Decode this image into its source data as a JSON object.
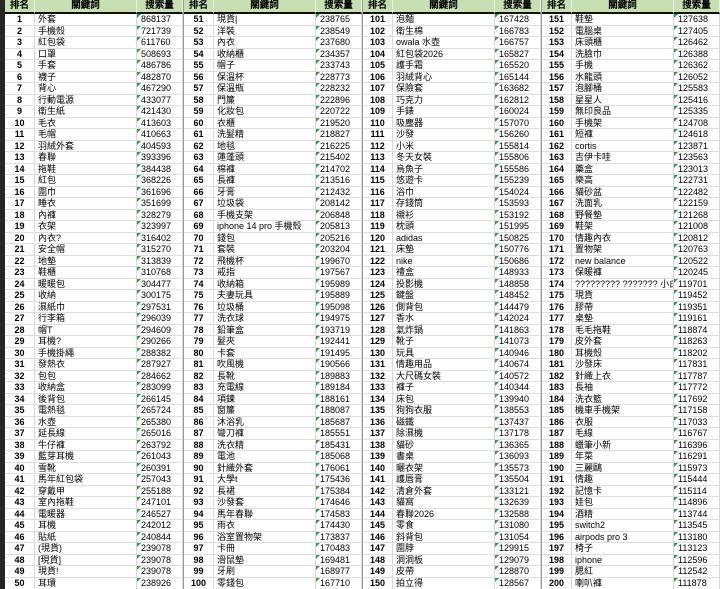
{
  "colors": {
    "header_bg": "#c6dfb3",
    "grid_line": "#d9d9d9",
    "dark_border": "#262626",
    "flag_triangle_green": "#2e9e44",
    "text": "#000000"
  },
  "table": {
    "headers": [
      "排名",
      "關鍵詞",
      "搜索量"
    ],
    "groups": [
      {
        "rows": [
          [
            "1",
            "外套",
            "868137"
          ],
          [
            "2",
            "手機殼",
            "721739"
          ],
          [
            "3",
            "紅包袋",
            "611760"
          ],
          [
            "4",
            "口罩",
            "508693"
          ],
          [
            "5",
            "手套",
            "486786"
          ],
          [
            "6",
            "襪子",
            "482870"
          ],
          [
            "7",
            "背心",
            "467290"
          ],
          [
            "8",
            "行動電源",
            "433077"
          ],
          [
            "9",
            "衛生紙",
            "421430"
          ],
          [
            "10",
            "毛衣",
            "413603"
          ],
          [
            "11",
            "毛帽",
            "410663"
          ],
          [
            "12",
            "羽絨外套",
            "404593"
          ],
          [
            "13",
            "春聯",
            "393396"
          ],
          [
            "14",
            "拖鞋",
            "384438"
          ],
          [
            "15",
            "紅包",
            "368226"
          ],
          [
            "16",
            "圍巾",
            "361696"
          ],
          [
            "17",
            "睡衣",
            "351699"
          ],
          [
            "18",
            "內褲",
            "328279"
          ],
          [
            "19",
            "衣架",
            "323997"
          ],
          [
            "20",
            "內衣?",
            "316402"
          ],
          [
            "21",
            "安全帽",
            "315270"
          ],
          [
            "22",
            "地墊",
            "313839"
          ],
          [
            "23",
            "鞋櫃",
            "310768"
          ],
          [
            "24",
            "暖暖包",
            "304477"
          ],
          [
            "25",
            "收納",
            "300175"
          ],
          [
            "26",
            "濕紙巾",
            "297531"
          ],
          [
            "27",
            "行李箱",
            "296039"
          ],
          [
            "28",
            "帽T",
            "294609"
          ],
          [
            "29",
            "耳機?",
            "290266"
          ],
          [
            "30",
            "手機掛繩",
            "288382"
          ],
          [
            "31",
            "發熱衣",
            "287927"
          ],
          [
            "32",
            "包包",
            "284662"
          ],
          [
            "33",
            "收納盒",
            "283099"
          ],
          [
            "34",
            "後背包",
            "266145"
          ],
          [
            "35",
            "電熱毯",
            "265724"
          ],
          [
            "36",
            "水壺",
            "265380"
          ],
          [
            "37",
            "延長線",
            "265016"
          ],
          [
            "38",
            "牛仔褲",
            "263792"
          ],
          [
            "39",
            "藍芽耳機",
            "261043"
          ],
          [
            "40",
            "雪靴",
            "260391"
          ],
          [
            "41",
            "馬年紅包袋",
            "257043"
          ],
          [
            "42",
            "穿戴甲",
            "255188"
          ],
          [
            "43",
            "室內拖鞋",
            "247101"
          ],
          [
            "44",
            "電暖器",
            "246527"
          ],
          [
            "45",
            "耳機",
            "242012"
          ],
          [
            "46",
            "貼紙",
            "240844"
          ],
          [
            "47",
            "(現貨)",
            "239078"
          ],
          [
            "48",
            "[現貨]",
            "239078"
          ],
          [
            "49",
            "現貨!",
            "239078"
          ],
          [
            "50",
            "耳環",
            "238926"
          ]
        ]
      },
      {
        "rows": [
          [
            "51",
            "現貨|",
            "238765"
          ],
          [
            "52",
            "洋裝",
            "238549"
          ],
          [
            "53",
            "內衣",
            "237680"
          ],
          [
            "54",
            "收納櫃",
            "234357"
          ],
          [
            "55",
            "帽子",
            "233743"
          ],
          [
            "56",
            "保溫杯",
            "228773"
          ],
          [
            "57",
            "保溫瓶",
            "228232"
          ],
          [
            "58",
            "門簾",
            "222896"
          ],
          [
            "59",
            "化妝包",
            "220722"
          ],
          [
            "60",
            "衣櫃",
            "219520"
          ],
          [
            "61",
            "洗髮精",
            "218827"
          ],
          [
            "62",
            "地毯",
            "216225"
          ],
          [
            "63",
            "蓮蓬頭",
            "215402"
          ],
          [
            "64",
            "棉褲",
            "214702"
          ],
          [
            "65",
            "長褲",
            "213516"
          ],
          [
            "66",
            "牙膏",
            "212432"
          ],
          [
            "67",
            "垃圾袋",
            "208142"
          ],
          [
            "68",
            "手機支架",
            "206848"
          ],
          [
            "69",
            "iphone 14 pro 手機殼",
            "205813"
          ],
          [
            "70",
            "錢包",
            "205216"
          ],
          [
            "71",
            "套裝",
            "203204"
          ],
          [
            "72",
            "飛機杯",
            "199670"
          ],
          [
            "73",
            "戒指",
            "197567"
          ],
          [
            "74",
            "收納箱",
            "195989"
          ],
          [
            "75",
            "夫妻玩具",
            "195889"
          ],
          [
            "76",
            "垃圾桶",
            "195098"
          ],
          [
            "77",
            "洗衣球",
            "194975"
          ],
          [
            "78",
            "鉛筆盒",
            "193719"
          ],
          [
            "79",
            "髮夾",
            "192441"
          ],
          [
            "80",
            "卡套",
            "191495"
          ],
          [
            "81",
            "吹風機",
            "190566"
          ],
          [
            "82",
            "長靴",
            "189883"
          ],
          [
            "83",
            "充電線",
            "189184"
          ],
          [
            "84",
            "項鍊",
            "188161"
          ],
          [
            "85",
            "窗簾",
            "188087"
          ],
          [
            "86",
            "沐浴乳",
            "185687"
          ],
          [
            "87",
            "彎刀褲",
            "185551"
          ],
          [
            "88",
            "洗衣精",
            "185431"
          ],
          [
            "89",
            "電池",
            "185068"
          ],
          [
            "90",
            "針織外套",
            "176061"
          ],
          [
            "91",
            "大學t",
            "175436"
          ],
          [
            "92",
            "長裙",
            "175384"
          ],
          [
            "93",
            "沙發套",
            "174646"
          ],
          [
            "94",
            "馬年春聯",
            "174583"
          ],
          [
            "95",
            "雨衣",
            "174430"
          ],
          [
            "96",
            "浴室置物架",
            "173837"
          ],
          [
            "97",
            "卡冊",
            "170483"
          ],
          [
            "98",
            "滑鼠墊",
            "169481"
          ],
          [
            "99",
            "牙刷",
            "168977"
          ],
          [
            "100",
            "零錢包",
            "167710"
          ]
        ]
      },
      {
        "rows": [
          [
            "101",
            "泡麵",
            "167428"
          ],
          [
            "102",
            "衛生棉",
            "166783"
          ],
          [
            "103",
            "owala 水壺",
            "166757"
          ],
          [
            "104",
            "紅包袋2026",
            "165827"
          ],
          [
            "105",
            "護手霜",
            "165520"
          ],
          [
            "106",
            "羽絨背心",
            "165144"
          ],
          [
            "107",
            "保險套",
            "163682"
          ],
          [
            "108",
            "巧克力",
            "162812"
          ],
          [
            "109",
            "手錶",
            "160024"
          ],
          [
            "110",
            "吸塵器",
            "157070"
          ],
          [
            "111",
            "沙發",
            "156260"
          ],
          [
            "112",
            "小米",
            "155814"
          ],
          [
            "113",
            "冬天女裝",
            "155806"
          ],
          [
            "114",
            "烏魚子",
            "155586"
          ],
          [
            "115",
            "悠遊卡",
            "155239"
          ],
          [
            "116",
            "浴巾",
            "154024"
          ],
          [
            "117",
            "存錢筒",
            "153593"
          ],
          [
            "118",
            "襯衫",
            "153192"
          ],
          [
            "119",
            "枕頭",
            "151995"
          ],
          [
            "120",
            "adidas",
            "150825"
          ],
          [
            "121",
            "床墊",
            "150776"
          ],
          [
            "122",
            "nike",
            "150686"
          ],
          [
            "123",
            "禮盒",
            "148933"
          ],
          [
            "124",
            "投影機",
            "148858"
          ],
          [
            "125",
            "鍵盤",
            "148452"
          ],
          [
            "126",
            "側背包",
            "144479"
          ],
          [
            "127",
            "香水",
            "142024"
          ],
          [
            "128",
            "氣炸鍋",
            "141863"
          ],
          [
            "129",
            "靴子",
            "141073"
          ],
          [
            "130",
            "玩具",
            "140946"
          ],
          [
            "131",
            "情趣用品",
            "140674"
          ],
          [
            "132",
            "大尺碼女裝",
            "140572"
          ],
          [
            "133",
            "褲子",
            "140344"
          ],
          [
            "134",
            "床包",
            "139940"
          ],
          [
            "135",
            "狗狗衣服",
            "138553"
          ],
          [
            "136",
            "磁鐵",
            "137437"
          ],
          [
            "137",
            "除濕機",
            "137178"
          ],
          [
            "138",
            "貓砂",
            "136365"
          ],
          [
            "139",
            "書桌",
            "136093"
          ],
          [
            "140",
            "曬衣架",
            "135573"
          ],
          [
            "141",
            "護唇膏",
            "135504"
          ],
          [
            "142",
            "清倉外套",
            "133121"
          ],
          [
            "143",
            "貓窩",
            "132639"
          ],
          [
            "144",
            "春聯2026",
            "132588"
          ],
          [
            "145",
            "零食",
            "131080"
          ],
          [
            "146",
            "斜背包",
            "131054"
          ],
          [
            "147",
            "圍脖",
            "129915"
          ],
          [
            "148",
            "洞洞板",
            "129079"
          ],
          [
            "149",
            "皮帶",
            "128870"
          ],
          [
            "150",
            "拍立得",
            "128567"
          ]
        ]
      },
      {
        "rows": [
          [
            "151",
            "鞋墊",
            "127638"
          ],
          [
            "152",
            "電腦桌",
            "127405"
          ],
          [
            "153",
            "床頭櫃",
            "126462"
          ],
          [
            "154",
            "洗臉巾",
            "126388"
          ],
          [
            "155",
            "手機",
            "126362"
          ],
          [
            "156",
            "水龍頭",
            "126052"
          ],
          [
            "157",
            "泡腳桶",
            "125583"
          ],
          [
            "158",
            "星星人",
            "125416"
          ],
          [
            "159",
            "無印良品",
            "125335"
          ],
          [
            "160",
            "手機架",
            "124708"
          ],
          [
            "161",
            "短褲",
            "124618"
          ],
          [
            "162",
            "cortis",
            "123871"
          ],
          [
            "163",
            "吉伊卡哇",
            "123563"
          ],
          [
            "164",
            "藥盒",
            "123013"
          ],
          [
            "165",
            "樂高",
            "122731"
          ],
          [
            "166",
            "貓砂盆",
            "122482"
          ],
          [
            "167",
            "洗面乳",
            "122159"
          ],
          [
            "168",
            "野餐墊",
            "121268"
          ],
          [
            "169",
            "鞋架",
            "121008"
          ],
          [
            "170",
            "情趣內衣",
            "120812"
          ],
          [
            "171",
            "置物架",
            "120763"
          ],
          [
            "172",
            "new balance",
            "120522"
          ],
          [
            "173",
            "保暖褲",
            "120245"
          ],
          [
            "174",
            "????????? ??????? 小白鞋",
            "119701"
          ],
          [
            "175",
            "現貨",
            "119452"
          ],
          [
            "176",
            "膠帶",
            "119351"
          ],
          [
            "177",
            "桌墊",
            "119161"
          ],
          [
            "178",
            "毛毛拖鞋",
            "118874"
          ],
          [
            "179",
            "皮外套",
            "118263"
          ],
          [
            "180",
            "耳機殼",
            "118202"
          ],
          [
            "181",
            "沙發床",
            "117831"
          ],
          [
            "182",
            "針織上衣",
            "117787"
          ],
          [
            "183",
            "長袖",
            "117772"
          ],
          [
            "184",
            "洗衣籃",
            "117692"
          ],
          [
            "185",
            "機車手機架",
            "117158"
          ],
          [
            "186",
            "衣服",
            "117033"
          ],
          [
            "187",
            "毛線",
            "116767"
          ],
          [
            "188",
            "蠟筆小新",
            "116396"
          ],
          [
            "189",
            "年菜",
            "116291"
          ],
          [
            "190",
            "三麗鷗",
            "115973"
          ],
          [
            "191",
            "情趣",
            "115444"
          ],
          [
            "192",
            "記憶卡",
            "115114"
          ],
          [
            "193",
            "娃包",
            "114896"
          ],
          [
            "194",
            "酒精",
            "113744"
          ],
          [
            "195",
            "switch2",
            "113545"
          ],
          [
            "196",
            "airpods pro 3",
            "113180"
          ],
          [
            "197",
            "椅子",
            "113123"
          ],
          [
            "198",
            "iphone",
            "112596"
          ],
          [
            "199",
            "腮紅",
            "112542"
          ],
          [
            "200",
            "喇叭褲",
            "111878"
          ]
        ]
      }
    ]
  }
}
